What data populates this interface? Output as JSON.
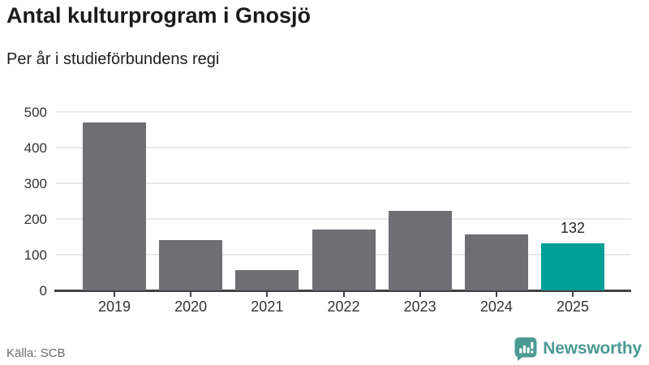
{
  "header": {
    "title": "Antal kulturprogram i Gnosjö",
    "subtitle": "Per år i studieförbundens regi"
  },
  "chart_data": {
    "type": "bar",
    "title": "Antal kulturprogram i Gnosjö",
    "subtitle": "Per år i studieförbundens regi",
    "categories": [
      "2019",
      "2020",
      "2021",
      "2022",
      "2023",
      "2024",
      "2025"
    ],
    "values": [
      470,
      140,
      56,
      170,
      222,
      156,
      132
    ],
    "xlabel": "",
    "ylabel": "",
    "ylim": [
      0,
      500
    ],
    "yticks": [
      0,
      100,
      200,
      300,
      400,
      500
    ],
    "grid": true,
    "legend": false,
    "bar_color": "#6e6e73",
    "highlight_index": 6,
    "highlight_color": "#00a099",
    "value_labels": [
      {
        "index": 6,
        "text": "132"
      }
    ]
  },
  "footer": {
    "source": "Källa: SCB",
    "brand": "Newsworthy",
    "brand_color": "#4a9a94"
  }
}
